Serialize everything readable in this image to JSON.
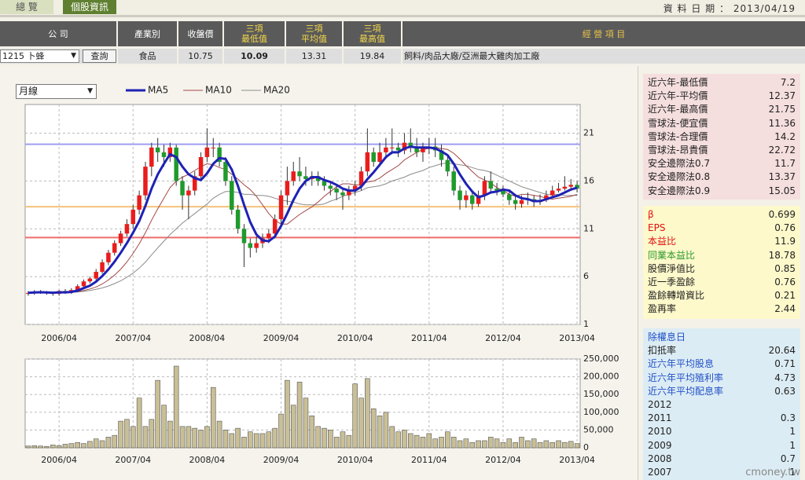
{
  "header": {
    "tabs": [
      "總 覽",
      "個股資訊"
    ],
    "date_label": "資 料 日 期 ：",
    "date": "2013/04/19"
  },
  "table": {
    "headers": [
      "公 司",
      "產業別",
      "收盤價",
      [
        "三項",
        "最低值"
      ],
      [
        "三項",
        "平均值"
      ],
      [
        "三項",
        "最高值"
      ],
      "經 營 項 目"
    ],
    "stock_select": "1215 卜蜂",
    "button": "查詢",
    "row": [
      "食品",
      10.75,
      10.09,
      13.31,
      19.84,
      "飼料/肉品大廠/亞洲最大雞肉加工廠"
    ]
  },
  "panels": [
    {
      "rows": [
        [
          "近六年-最低價",
          7.2
        ],
        [
          "近六年-平均價",
          12.37
        ],
        [
          "近六年-最高價",
          21.75
        ],
        [
          "雪球法-便宜價",
          11.36
        ],
        [
          "雪球法-合理價",
          14.2
        ],
        [
          "雪球法-昂貴價",
          22.72
        ],
        [
          "安全邊際法0.7",
          11.7
        ],
        [
          "安全邊際法0.8",
          13.37
        ],
        [
          "安全邊際法0.9",
          15.05
        ]
      ]
    },
    {
      "rows": [
        [
          "β",
          0.699
        ],
        [
          "EPS",
          0.76
        ],
        [
          "本益比",
          11.9
        ],
        [
          "同業本益比",
          18.78
        ],
        [
          "股價淨值比",
          0.85
        ],
        [
          "近一季盈餘",
          0.76
        ],
        [
          "盈餘轉增資比",
          0.21
        ],
        [
          "盈再率",
          2.44
        ]
      ]
    },
    {
      "title": "除權息日",
      "rows": [
        [
          "扣抵率",
          20.64
        ],
        [
          "近六年平均股息",
          0.71
        ],
        [
          "近六年平均殖利率",
          4.73
        ],
        [
          "近六年平均配息率",
          0.63
        ],
        [
          "2012"
        ],
        [
          "2011",
          0.3
        ],
        [
          "2010",
          1
        ],
        [
          "2009",
          1
        ],
        [
          "2008",
          0.7
        ],
        [
          "2007",
          1
        ]
      ]
    }
  ],
  "footer": "cmoney.tw",
  "chart_data": [
    {
      "type": "candlestick",
      "period_select": "月線",
      "categories": [
        null,
        null,
        null,
        null,
        null,
        "2006/04",
        null,
        null,
        null,
        null,
        null,
        null,
        null,
        null,
        null,
        null,
        null,
        "2007/04",
        null,
        null,
        null,
        null,
        null,
        null,
        null,
        null,
        null,
        null,
        null,
        "2008/04",
        null,
        null,
        null,
        null,
        null,
        null,
        null,
        null,
        null,
        null,
        null,
        "2009/04",
        null,
        null,
        null,
        null,
        null,
        null,
        null,
        null,
        null,
        null,
        null,
        "2010/04",
        null,
        null,
        null,
        null,
        null,
        null,
        null,
        null,
        null,
        null,
        null,
        "2011/04",
        null,
        null,
        null,
        null,
        null,
        null,
        null,
        null,
        null,
        null,
        null,
        "2012/04",
        null,
        null,
        null,
        null,
        null,
        null,
        null,
        null,
        null,
        null,
        null,
        "2013/04"
      ],
      "open": [
        4.2,
        4.3,
        4.4,
        4.4,
        4.3,
        4.2,
        4.5,
        4.4,
        4.6,
        5.0,
        5.5,
        5.8,
        6.5,
        7.5,
        8.5,
        9.5,
        10.5,
        11.5,
        13.0,
        14.5,
        17.5,
        19.5,
        19.0,
        18.5,
        19.5,
        16.0,
        14.5,
        15.0,
        16.5,
        18.5,
        19.5,
        19.5,
        18.0,
        16.0,
        13.0,
        11.0,
        9.5,
        9.0,
        9.5,
        10.0,
        10.5,
        12.0,
        14.5,
        16.0,
        17.0,
        16.5,
        16.2,
        16.5,
        16.0,
        15.5,
        15.2,
        14.8,
        14.5,
        15.0,
        15.5,
        17.0,
        19.0,
        18.0,
        19.0,
        19.5,
        19.5,
        19.2,
        20.0,
        19.6,
        19.0,
        19.5,
        19.6,
        19.2,
        18.2,
        17.0,
        15.0,
        14.0,
        14.5,
        13.6,
        14.5,
        16.0,
        15.2,
        15.0,
        14.6,
        14.0,
        13.6,
        14.0,
        14.1,
        13.8,
        14.0,
        14.5,
        15.0,
        15.2,
        15.4,
        15.6
      ],
      "high": [
        4.5,
        4.6,
        4.6,
        4.5,
        4.4,
        4.6,
        4.7,
        4.8,
        5.2,
        5.7,
        6.0,
        6.8,
        7.8,
        8.8,
        9.8,
        10.8,
        12.0,
        13.5,
        15.0,
        18.0,
        20.0,
        20.5,
        19.8,
        20.0,
        19.8,
        16.5,
        15.5,
        17.0,
        19.0,
        21.5,
        20.5,
        20.0,
        18.5,
        16.5,
        13.5,
        11.5,
        10.0,
        10.2,
        10.5,
        11.0,
        12.5,
        15.0,
        17.5,
        18.0,
        18.5,
        17.5,
        17.0,
        17.0,
        16.5,
        16.0,
        15.5,
        15.2,
        15.5,
        16.0,
        17.5,
        21.5,
        19.5,
        20.0,
        20.5,
        21.5,
        20.0,
        21.0,
        21.5,
        20.5,
        20.0,
        20.5,
        20.5,
        19.8,
        18.8,
        17.5,
        15.5,
        15.0,
        15.0,
        15.0,
        16.5,
        17.0,
        15.8,
        15.5,
        15.0,
        14.5,
        14.5,
        14.8,
        14.5,
        14.6,
        15.0,
        15.5,
        15.8,
        16.5,
        16.2,
        16.0
      ],
      "low": [
        4.0,
        4.1,
        4.2,
        4.1,
        4.0,
        4.0,
        4.2,
        4.2,
        4.4,
        4.8,
        5.3,
        5.6,
        6.3,
        7.2,
        8.2,
        9.2,
        10.2,
        11.0,
        12.5,
        14.0,
        16.5,
        18.0,
        17.5,
        18.0,
        15.5,
        13.0,
        12.0,
        14.5,
        16.0,
        18.0,
        18.5,
        17.5,
        15.5,
        12.5,
        10.5,
        7.0,
        8.0,
        8.5,
        9.0,
        9.5,
        10.0,
        11.5,
        13.5,
        15.5,
        16.0,
        15.5,
        15.5,
        15.5,
        15.0,
        14.5,
        14.0,
        13.0,
        14.0,
        14.5,
        15.0,
        16.5,
        17.5,
        17.5,
        18.5,
        18.8,
        18.5,
        18.8,
        19.0,
        18.5,
        18.0,
        18.8,
        18.5,
        17.5,
        16.5,
        14.5,
        13.0,
        13.2,
        13.0,
        13.3,
        14.0,
        14.8,
        14.5,
        14.3,
        13.5,
        13.0,
        13.2,
        13.5,
        13.3,
        13.5,
        13.8,
        14.3,
        14.8,
        15.0,
        15.0,
        14.8
      ],
      "close": [
        4.3,
        4.4,
        4.4,
        4.3,
        4.2,
        4.5,
        4.4,
        4.6,
        5.0,
        5.5,
        5.8,
        6.5,
        7.5,
        8.5,
        9.5,
        10.5,
        11.5,
        13.0,
        14.5,
        17.5,
        19.5,
        19.0,
        18.5,
        19.5,
        16.0,
        14.5,
        15.0,
        16.5,
        18.5,
        19.5,
        19.5,
        18.0,
        16.0,
        13.0,
        11.0,
        9.5,
        9.0,
        9.5,
        10.0,
        10.5,
        12.0,
        14.5,
        16.0,
        17.0,
        16.5,
        16.2,
        16.5,
        16.0,
        15.5,
        15.2,
        14.8,
        14.5,
        15.0,
        15.5,
        17.0,
        19.0,
        18.0,
        19.0,
        19.5,
        19.5,
        19.2,
        20.0,
        19.6,
        19.0,
        19.5,
        19.6,
        19.2,
        18.2,
        17.0,
        15.0,
        14.0,
        14.5,
        13.6,
        14.5,
        16.0,
        15.2,
        15.0,
        14.6,
        14.0,
        13.6,
        14.0,
        14.1,
        13.8,
        14.0,
        14.5,
        15.0,
        15.2,
        15.4,
        15.6,
        15.2
      ],
      "series": [
        {
          "name": "MA5",
          "color": "#1e22b4",
          "width": 3,
          "values": [
            4.3,
            4.35,
            4.37,
            4.35,
            4.32,
            4.36,
            4.36,
            4.4,
            4.54,
            4.8,
            5.06,
            5.48,
            6.06,
            6.76,
            7.56,
            8.5,
            9.5,
            10.6,
            11.8,
            13.4,
            15.2,
            16.7,
            17.8,
            18.8,
            18.5,
            17.5,
            16.7,
            16.3,
            16.1,
            16.8,
            17.8,
            18.4,
            18.3,
            17.2,
            15.5,
            13.5,
            11.7,
            10.4,
            9.8,
            9.7,
            10.2,
            11.3,
            12.6,
            14.0,
            15.2,
            16.0,
            16.4,
            16.4,
            16.1,
            15.9,
            15.6,
            15.2,
            15.0,
            15.0,
            15.4,
            16.2,
            16.9,
            17.7,
            18.5,
            19.0,
            19.0,
            19.4,
            19.6,
            19.5,
            19.5,
            19.5,
            19.4,
            19.1,
            18.7,
            17.8,
            16.7,
            15.7,
            14.9,
            14.3,
            14.5,
            14.8,
            14.9,
            15.1,
            15.0,
            14.5,
            14.2,
            14.1,
            13.9,
            13.9,
            14.1,
            14.3,
            14.5,
            14.8,
            15.1,
            15.3
          ]
        },
        {
          "name": "MA10",
          "color": "#a34848",
          "width": 1,
          "values": [
            4.3,
            4.35,
            4.37,
            4.35,
            4.32,
            4.33,
            4.34,
            4.36,
            4.43,
            4.56,
            4.71,
            4.92,
            5.23,
            5.65,
            6.16,
            6.78,
            7.53,
            8.43,
            9.43,
            10.6,
            11.9,
            13.1,
            14.2,
            15.3,
            16.0,
            16.4,
            16.7,
            17.1,
            17.5,
            17.8,
            17.7,
            17.4,
            17.2,
            16.7,
            16.2,
            15.6,
            15.1,
            14.4,
            13.5,
            12.6,
            11.9,
            11.5,
            11.5,
            12.0,
            12.5,
            12.9,
            13.3,
            13.8,
            14.4,
            14.9,
            15.4,
            15.7,
            15.7,
            15.6,
            15.6,
            15.9,
            16.0,
            16.3,
            16.8,
            17.2,
            17.6,
            18.2,
            18.6,
            19.0,
            19.3,
            19.4,
            19.5,
            19.4,
            19.3,
            18.9,
            18.3,
            17.6,
            17.0,
            16.4,
            16.1,
            15.8,
            15.3,
            15.0,
            14.6,
            14.4,
            14.6,
            14.6,
            14.5,
            14.4,
            14.2,
            14.1,
            14.2,
            14.3,
            14.4,
            14.6
          ]
        },
        {
          "name": "MA20",
          "color": "#8c8c8c",
          "width": 1,
          "values": [
            4.3,
            4.35,
            4.37,
            4.35,
            4.32,
            4.33,
            4.34,
            4.35,
            4.39,
            4.46,
            4.55,
            4.67,
            4.82,
            5.02,
            5.27,
            5.57,
            5.93,
            6.37,
            6.89,
            7.52,
            8.28,
            9.01,
            9.71,
            10.4,
            11.0,
            11.6,
            12.1,
            12.6,
            13.1,
            13.6,
            14.2,
            14.6,
            14.9,
            14.9,
            14.8,
            14.6,
            14.6,
            14.5,
            14.5,
            14.4,
            14.2,
            14.0,
            13.9,
            13.8,
            13.6,
            13.5,
            13.5,
            13.5,
            13.6,
            13.9,
            14.1,
            14.4,
            14.6,
            14.8,
            15.0,
            15.3,
            15.4,
            15.5,
            15.7,
            16.0,
            16.2,
            16.4,
            16.7,
            16.9,
            17.1,
            17.4,
            17.6,
            17.8,
            17.9,
            17.8,
            17.7,
            17.6,
            17.4,
            17.2,
            17.1,
            16.9,
            16.6,
            16.3,
            16.0,
            15.7,
            15.4,
            15.2,
            15.0,
            14.8,
            14.6,
            14.6,
            14.6,
            14.5,
            14.5,
            14.5
          ]
        }
      ],
      "reference_lines": [
        {
          "value": 19.84,
          "color": "#9d9df2"
        },
        {
          "value": 13.31,
          "color": "#f5c27c"
        },
        {
          "value": 10.09,
          "color": "#ee6d6d"
        }
      ],
      "up_color": "#ea1c1c",
      "down_color": "#1f9a2c",
      "ylim": [
        1,
        24
      ],
      "yticks": [
        1,
        6,
        11,
        16,
        21
      ],
      "grid": true
    },
    {
      "type": "bar",
      "categories": [
        null,
        null,
        null,
        null,
        null,
        "2006/04",
        null,
        null,
        null,
        null,
        null,
        null,
        null,
        null,
        null,
        null,
        null,
        "2007/04",
        null,
        null,
        null,
        null,
        null,
        null,
        null,
        null,
        null,
        null,
        null,
        "2008/04",
        null,
        null,
        null,
        null,
        null,
        null,
        null,
        null,
        null,
        null,
        null,
        "2009/04",
        null,
        null,
        null,
        null,
        null,
        null,
        null,
        null,
        null,
        null,
        null,
        "2010/04",
        null,
        null,
        null,
        null,
        null,
        null,
        null,
        null,
        null,
        null,
        null,
        "2011/04",
        null,
        null,
        null,
        null,
        null,
        null,
        null,
        null,
        null,
        null,
        null,
        "2012/04",
        null,
        null,
        null,
        null,
        null,
        null,
        null,
        null,
        null,
        null,
        null,
        "2013/04"
      ],
      "values": [
        5000,
        6000,
        5000,
        4000,
        8000,
        6000,
        10000,
        12000,
        15000,
        12000,
        18000,
        25000,
        20000,
        30000,
        35000,
        75000,
        80000,
        60000,
        140000,
        60000,
        80000,
        190000,
        120000,
        75000,
        230000,
        60000,
        60000,
        55000,
        50000,
        60000,
        170000,
        75000,
        50000,
        40000,
        55000,
        30000,
        45000,
        40000,
        40000,
        45000,
        55000,
        95000,
        190000,
        120000,
        185000,
        140000,
        90000,
        60000,
        55000,
        50000,
        30000,
        45000,
        35000,
        180000,
        140000,
        195000,
        110000,
        90000,
        100000,
        60000,
        45000,
        50000,
        40000,
        35000,
        30000,
        40000,
        25000,
        30000,
        45000,
        30000,
        20000,
        25000,
        15000,
        20000,
        20000,
        30000,
        25000,
        15000,
        25000,
        15000,
        30000,
        20000,
        25000,
        15000,
        20000,
        15000,
        20000,
        15000,
        18000,
        12000
      ],
      "color": "#c9bf96",
      "ylim": [
        0,
        250000
      ],
      "yticks": [
        0,
        {
          "value": 50000,
          "label": "50,000"
        },
        {
          "value": 100000,
          "label": "100,000"
        },
        {
          "value": 150000,
          "label": "150,000"
        },
        {
          "value": 200000,
          "label": "200,000"
        },
        {
          "value": 250000,
          "label": "250,000"
        }
      ],
      "grid": true
    }
  ]
}
